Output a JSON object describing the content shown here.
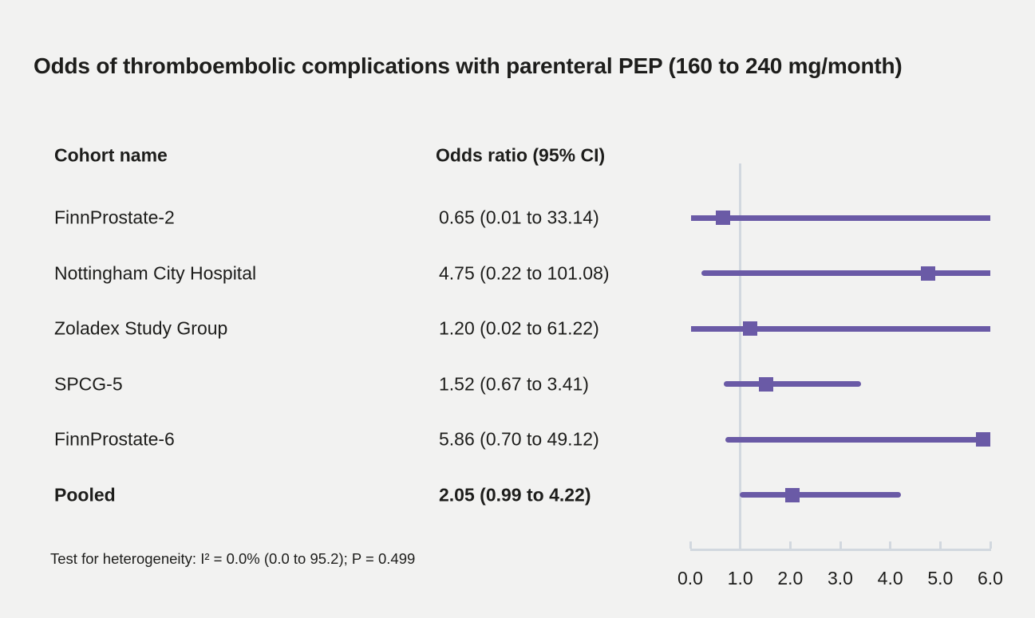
{
  "chart_data": {
    "type": "forest",
    "title": "Odds of thromboembolic complications with parenteral PEP (160 to 240 mg/month)",
    "columns": {
      "cohort": "Cohort name",
      "odds_ratio": "Odds ratio (95% CI)"
    },
    "rows": [
      {
        "cohort": "FinnProstate-2",
        "or_label": "0.65 (0.01 to 33.14)",
        "est": 0.65,
        "lo": 0.01,
        "hi": 33.14,
        "bold": false
      },
      {
        "cohort": "Nottingham City Hospital",
        "or_label": "4.75 (0.22 to 101.08)",
        "est": 4.75,
        "lo": 0.22,
        "hi": 101.08,
        "bold": false
      },
      {
        "cohort": "Zoladex Study Group",
        "or_label": "1.20 (0.02 to 61.22)",
        "est": 1.2,
        "lo": 0.02,
        "hi": 61.22,
        "bold": false
      },
      {
        "cohort": "SPCG-5",
        "or_label": "1.52 (0.67 to 3.41)",
        "est": 1.52,
        "lo": 0.67,
        "hi": 3.41,
        "bold": false
      },
      {
        "cohort": "FinnProstate-6",
        "or_label": "5.86 (0.70 to 49.12)",
        "est": 5.86,
        "lo": 0.7,
        "hi": 49.12,
        "bold": false
      },
      {
        "cohort": "Pooled",
        "or_label": "2.05 (0.99 to 4.22)",
        "est": 2.05,
        "lo": 0.99,
        "hi": 4.22,
        "bold": true
      }
    ],
    "axis": {
      "min": 0,
      "max": 6,
      "ticks": [
        0,
        1,
        2,
        3,
        4,
        5,
        6
      ],
      "tick_labels": [
        "0.0",
        "1.0",
        "2.0",
        "3.0",
        "4.0",
        "5.0",
        "6.0"
      ],
      "ref_line": 1.0,
      "grid": false
    },
    "footnote": "Test for heterogeneity: I² = 0.0% (0.0 to 95.2); P = 0.499",
    "colors": {
      "marker": "#6a5aa6",
      "axis": "#d2d8df",
      "background": "#f2f2f1",
      "text": "#1d1d1b"
    }
  }
}
